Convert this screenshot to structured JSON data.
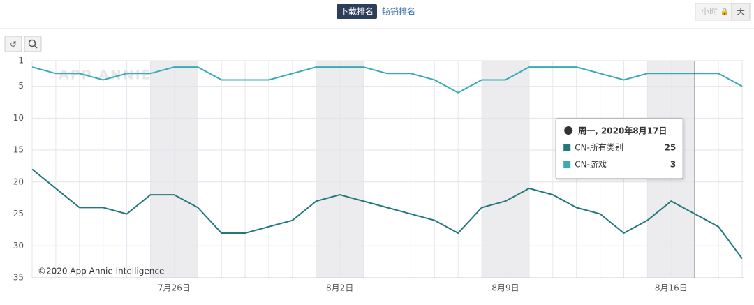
{
  "toolbar": {
    "tabs": [
      "下载排名",
      "畅销排名"
    ],
    "granularity": [
      "小时",
      "天"
    ]
  },
  "chart_data": {
    "type": "line",
    "watermark": "APP ANNIE",
    "credit": "©2020 App Annie Intelligence",
    "categories": [
      null,
      null,
      null,
      null,
      null,
      null,
      "7月26日",
      null,
      null,
      null,
      null,
      null,
      null,
      "8月2日",
      null,
      null,
      null,
      null,
      null,
      null,
      "8月9日",
      null,
      null,
      null,
      null,
      null,
      null,
      "8月16日",
      null,
      null,
      null
    ],
    "series": [
      {
        "name": "CN-所有类别",
        "color": "#22787c",
        "values": [
          18,
          21,
          24,
          24,
          25,
          22,
          22,
          24,
          28,
          28,
          27,
          26,
          23,
          22,
          23,
          24,
          25,
          26,
          28,
          24,
          23,
          21,
          22,
          24,
          25,
          28,
          26,
          23,
          25,
          27,
          32
        ]
      },
      {
        "name": "CN-游戏",
        "color": "#3aabb6",
        "values": [
          2,
          3,
          3,
          4,
          3,
          3,
          2,
          2,
          4,
          4,
          4,
          3,
          2,
          2,
          2,
          3,
          3,
          4,
          6,
          4,
          4,
          2,
          2,
          2,
          3,
          4,
          3,
          3,
          3,
          3,
          5
        ]
      }
    ],
    "ylim": [
      1,
      35
    ],
    "y_inverted": true,
    "yticks": [
      1,
      5,
      10,
      15,
      20,
      25,
      30,
      35
    ],
    "grid": true,
    "highlight_index": 28,
    "tooltip_title": "周一, 2020年8月17日"
  }
}
